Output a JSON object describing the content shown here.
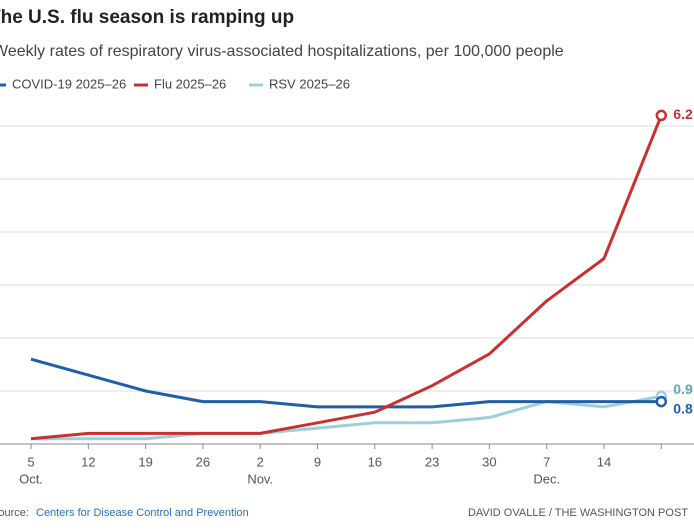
{
  "chart_data": {
    "type": "line",
    "title": "The U.S. flu season is ramping up",
    "subtitle": "Weekly rates of respiratory virus-associated hospitalizations, per 100,000 people",
    "categories": [
      "5",
      "12",
      "19",
      "26",
      "2",
      "9",
      "16",
      "23",
      "30",
      "7",
      "14",
      null
    ],
    "months": [
      "Oct.",
      null,
      null,
      null,
      "Nov.",
      null,
      null,
      null,
      null,
      "Dec.",
      null,
      null
    ],
    "series": [
      {
        "name": "COVID-19 2025–26",
        "color": "#1f5fa8",
        "values": [
          1.6,
          1.3,
          1.0,
          0.8,
          0.8,
          0.7,
          0.7,
          0.7,
          0.8,
          0.8,
          0.8,
          0.8
        ],
        "value_labels": [
          null,
          null,
          null,
          null,
          null,
          null,
          null,
          null,
          null,
          null,
          null,
          "0.8"
        ]
      },
      {
        "name": "Flu 2025–26",
        "color": "#c8312f",
        "values": [
          0.1,
          0.2,
          0.2,
          0.2,
          0.2,
          0.4,
          0.6,
          1.1,
          1.7,
          2.7,
          3.5,
          6.2
        ],
        "value_labels": [
          null,
          null,
          null,
          null,
          null,
          null,
          null,
          null,
          null,
          null,
          null,
          "6.2"
        ]
      },
      {
        "name": "RSV 2025–26",
        "color": "#9ccfdc",
        "values": [
          0.1,
          0.1,
          0.1,
          0.2,
          0.2,
          0.3,
          0.4,
          0.4,
          0.5,
          0.8,
          0.7,
          0.9
        ],
        "value_labels": [
          null,
          null,
          null,
          null,
          null,
          null,
          null,
          null,
          null,
          null,
          null,
          "0.9"
        ]
      }
    ],
    "ylim": [
      0,
      6.4
    ],
    "yticks": [
      0,
      1,
      2,
      3,
      4,
      5,
      6
    ],
    "grid": true,
    "source_prefix": "Source:",
    "source": "Centers for Disease Control and Prevention",
    "credit": "DAVID OVALLE / THE WASHINGTON POST"
  }
}
